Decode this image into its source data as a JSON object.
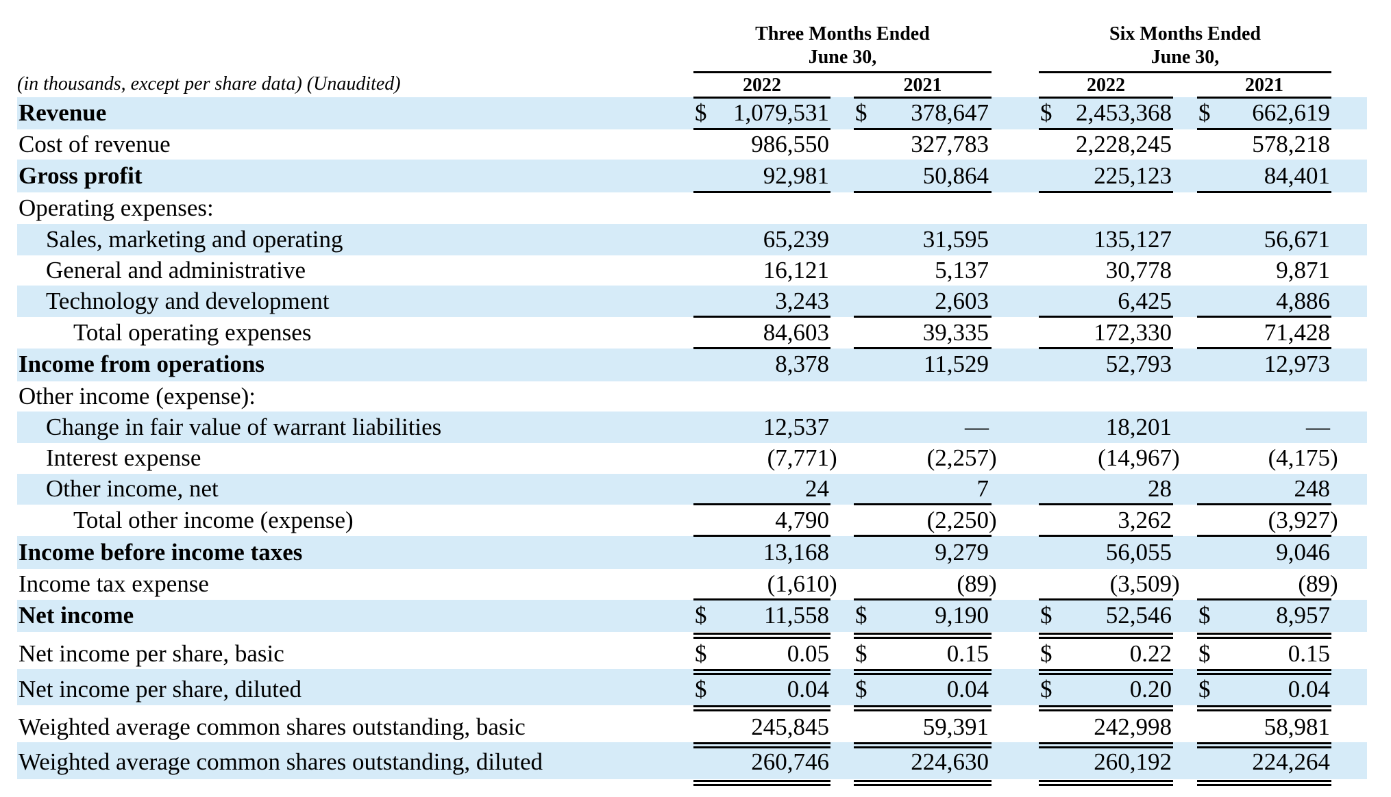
{
  "header": {
    "three_months_line1": "Three Months Ended",
    "three_months_line2": "June 30,",
    "six_months_line1": "Six Months Ended",
    "six_months_line2": "June 30,",
    "units_note": "(in thousands, except per share data) (Unaudited)",
    "years": [
      "2022",
      "2021",
      "2022",
      "2021"
    ]
  },
  "band_color": "#d6ebf8",
  "currency_symbol": "$",
  "rows": [
    {
      "label": "Revenue",
      "values": [
        "1,079,531",
        "378,647",
        "2,453,368",
        "662,619"
      ]
    },
    {
      "label": "Cost of revenue",
      "values": [
        "986,550",
        "327,783",
        "2,228,245",
        "578,218"
      ]
    },
    {
      "label": "Gross profit",
      "values": [
        "92,981",
        "50,864",
        "225,123",
        "84,401"
      ]
    },
    {
      "label": "Operating expenses:",
      "values": []
    },
    {
      "label": "Sales, marketing and operating",
      "values": [
        "65,239",
        "31,595",
        "135,127",
        "56,671"
      ]
    },
    {
      "label": "General and administrative",
      "values": [
        "16,121",
        "5,137",
        "30,778",
        "9,871"
      ]
    },
    {
      "label": "Technology and development",
      "values": [
        "3,243",
        "2,603",
        "6,425",
        "4,886"
      ]
    },
    {
      "label": "Total operating expenses",
      "values": [
        "84,603",
        "39,335",
        "172,330",
        "71,428"
      ]
    },
    {
      "label": "Income from operations",
      "values": [
        "8,378",
        "11,529",
        "52,793",
        "12,973"
      ]
    },
    {
      "label": "Other income (expense):",
      "values": []
    },
    {
      "label": "Change in fair value of warrant liabilities",
      "values": [
        "12,537",
        "—",
        "18,201",
        "—"
      ]
    },
    {
      "label": "Interest expense",
      "values": [
        "(7,771",
        "(2,257",
        "(14,967",
        "(4,175"
      ]
    },
    {
      "label": "Other income, net",
      "values": [
        "24",
        "7",
        "28",
        "248"
      ]
    },
    {
      "label": "Total other income (expense)",
      "values": [
        "4,790",
        "(2,250",
        "3,262",
        "(3,927"
      ]
    },
    {
      "label": "Income before income taxes",
      "values": [
        "13,168",
        "9,279",
        "56,055",
        "9,046"
      ]
    },
    {
      "label": "Income tax expense",
      "values": [
        "(1,610",
        "(89",
        "(3,509",
        "(89"
      ]
    },
    {
      "label": "Net income",
      "values": [
        "11,558",
        "9,190",
        "52,546",
        "8,957"
      ]
    },
    {
      "label": "Net income per share, basic",
      "values": [
        "0.05",
        "0.15",
        "0.22",
        "0.15"
      ]
    },
    {
      "label": "Net income per share, diluted",
      "values": [
        "0.04",
        "0.04",
        "0.20",
        "0.04"
      ]
    },
    {
      "label": "Weighted average common shares outstanding, basic",
      "values": [
        "245,845",
        "59,391",
        "242,998",
        "58,981"
      ]
    },
    {
      "label": "Weighted average common shares outstanding, diluted",
      "values": [
        "260,746",
        "224,630",
        "260,192",
        "224,264"
      ]
    }
  ],
  "close_paren": ")"
}
